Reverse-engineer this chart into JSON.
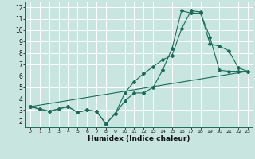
{
  "title": "",
  "xlabel": "Humidex (Indice chaleur)",
  "ylabel": "",
  "background_color": "#c8e6df",
  "grid_color": "#ffffff",
  "line_color": "#1a6b5a",
  "xlim": [
    -0.5,
    23.5
  ],
  "ylim": [
    1.5,
    12.5
  ],
  "xticks": [
    0,
    1,
    2,
    3,
    4,
    5,
    6,
    7,
    8,
    9,
    10,
    11,
    12,
    13,
    14,
    15,
    16,
    17,
    18,
    19,
    20,
    21,
    22,
    23
  ],
  "yticks": [
    2,
    3,
    4,
    5,
    6,
    7,
    8,
    9,
    10,
    11,
    12
  ],
  "series1_x": [
    0,
    1,
    2,
    3,
    4,
    5,
    6,
    7,
    8,
    9,
    10,
    11,
    12,
    13,
    14,
    15,
    16,
    17,
    18,
    19,
    20,
    21,
    22,
    23
  ],
  "series1_y": [
    3.3,
    3.1,
    2.9,
    3.1,
    3.3,
    2.8,
    3.0,
    2.9,
    1.8,
    2.7,
    3.8,
    4.5,
    4.5,
    5.0,
    6.5,
    8.4,
    11.7,
    11.5,
    11.5,
    9.4,
    6.5,
    6.4,
    6.4,
    6.4
  ],
  "series2_x": [
    0,
    1,
    2,
    3,
    4,
    5,
    6,
    7,
    8,
    9,
    10,
    11,
    12,
    13,
    14,
    15,
    16,
    17,
    18,
    19,
    20,
    21,
    22,
    23
  ],
  "series2_y": [
    3.3,
    3.1,
    2.9,
    3.1,
    3.3,
    2.8,
    3.0,
    2.9,
    1.8,
    2.7,
    4.5,
    5.5,
    6.2,
    6.8,
    7.4,
    7.8,
    10.1,
    11.7,
    11.6,
    8.8,
    8.6,
    8.2,
    6.7,
    6.4
  ],
  "series3_x": [
    0,
    23
  ],
  "series3_y": [
    3.3,
    6.4
  ]
}
